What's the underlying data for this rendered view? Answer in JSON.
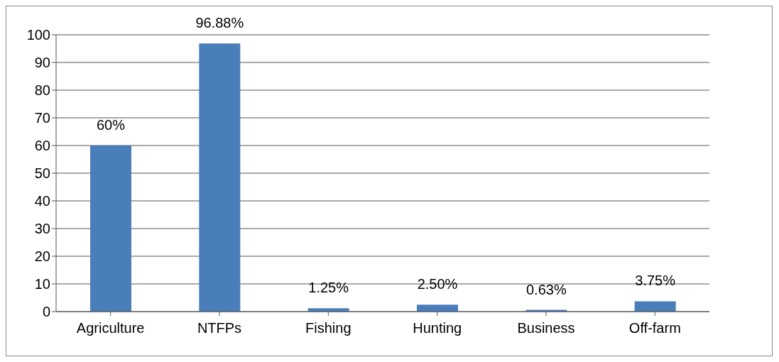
{
  "chart_data": {
    "type": "bar",
    "categories": [
      "Agriculture",
      "NTFPs",
      "Fishing",
      "Hunting",
      "Business",
      "Off-farm"
    ],
    "values": [
      60,
      96.88,
      1.25,
      2.5,
      0.63,
      3.75
    ],
    "value_labels": [
      "60%",
      "96.88%",
      "1.25%",
      "2.50%",
      "0.63%",
      "3.75%"
    ],
    "color": "#4a7ebb",
    "ylim": [
      0,
      100
    ],
    "yticks": [
      0,
      10,
      20,
      30,
      40,
      50,
      60,
      70,
      80,
      90,
      100
    ],
    "grid": "y"
  }
}
